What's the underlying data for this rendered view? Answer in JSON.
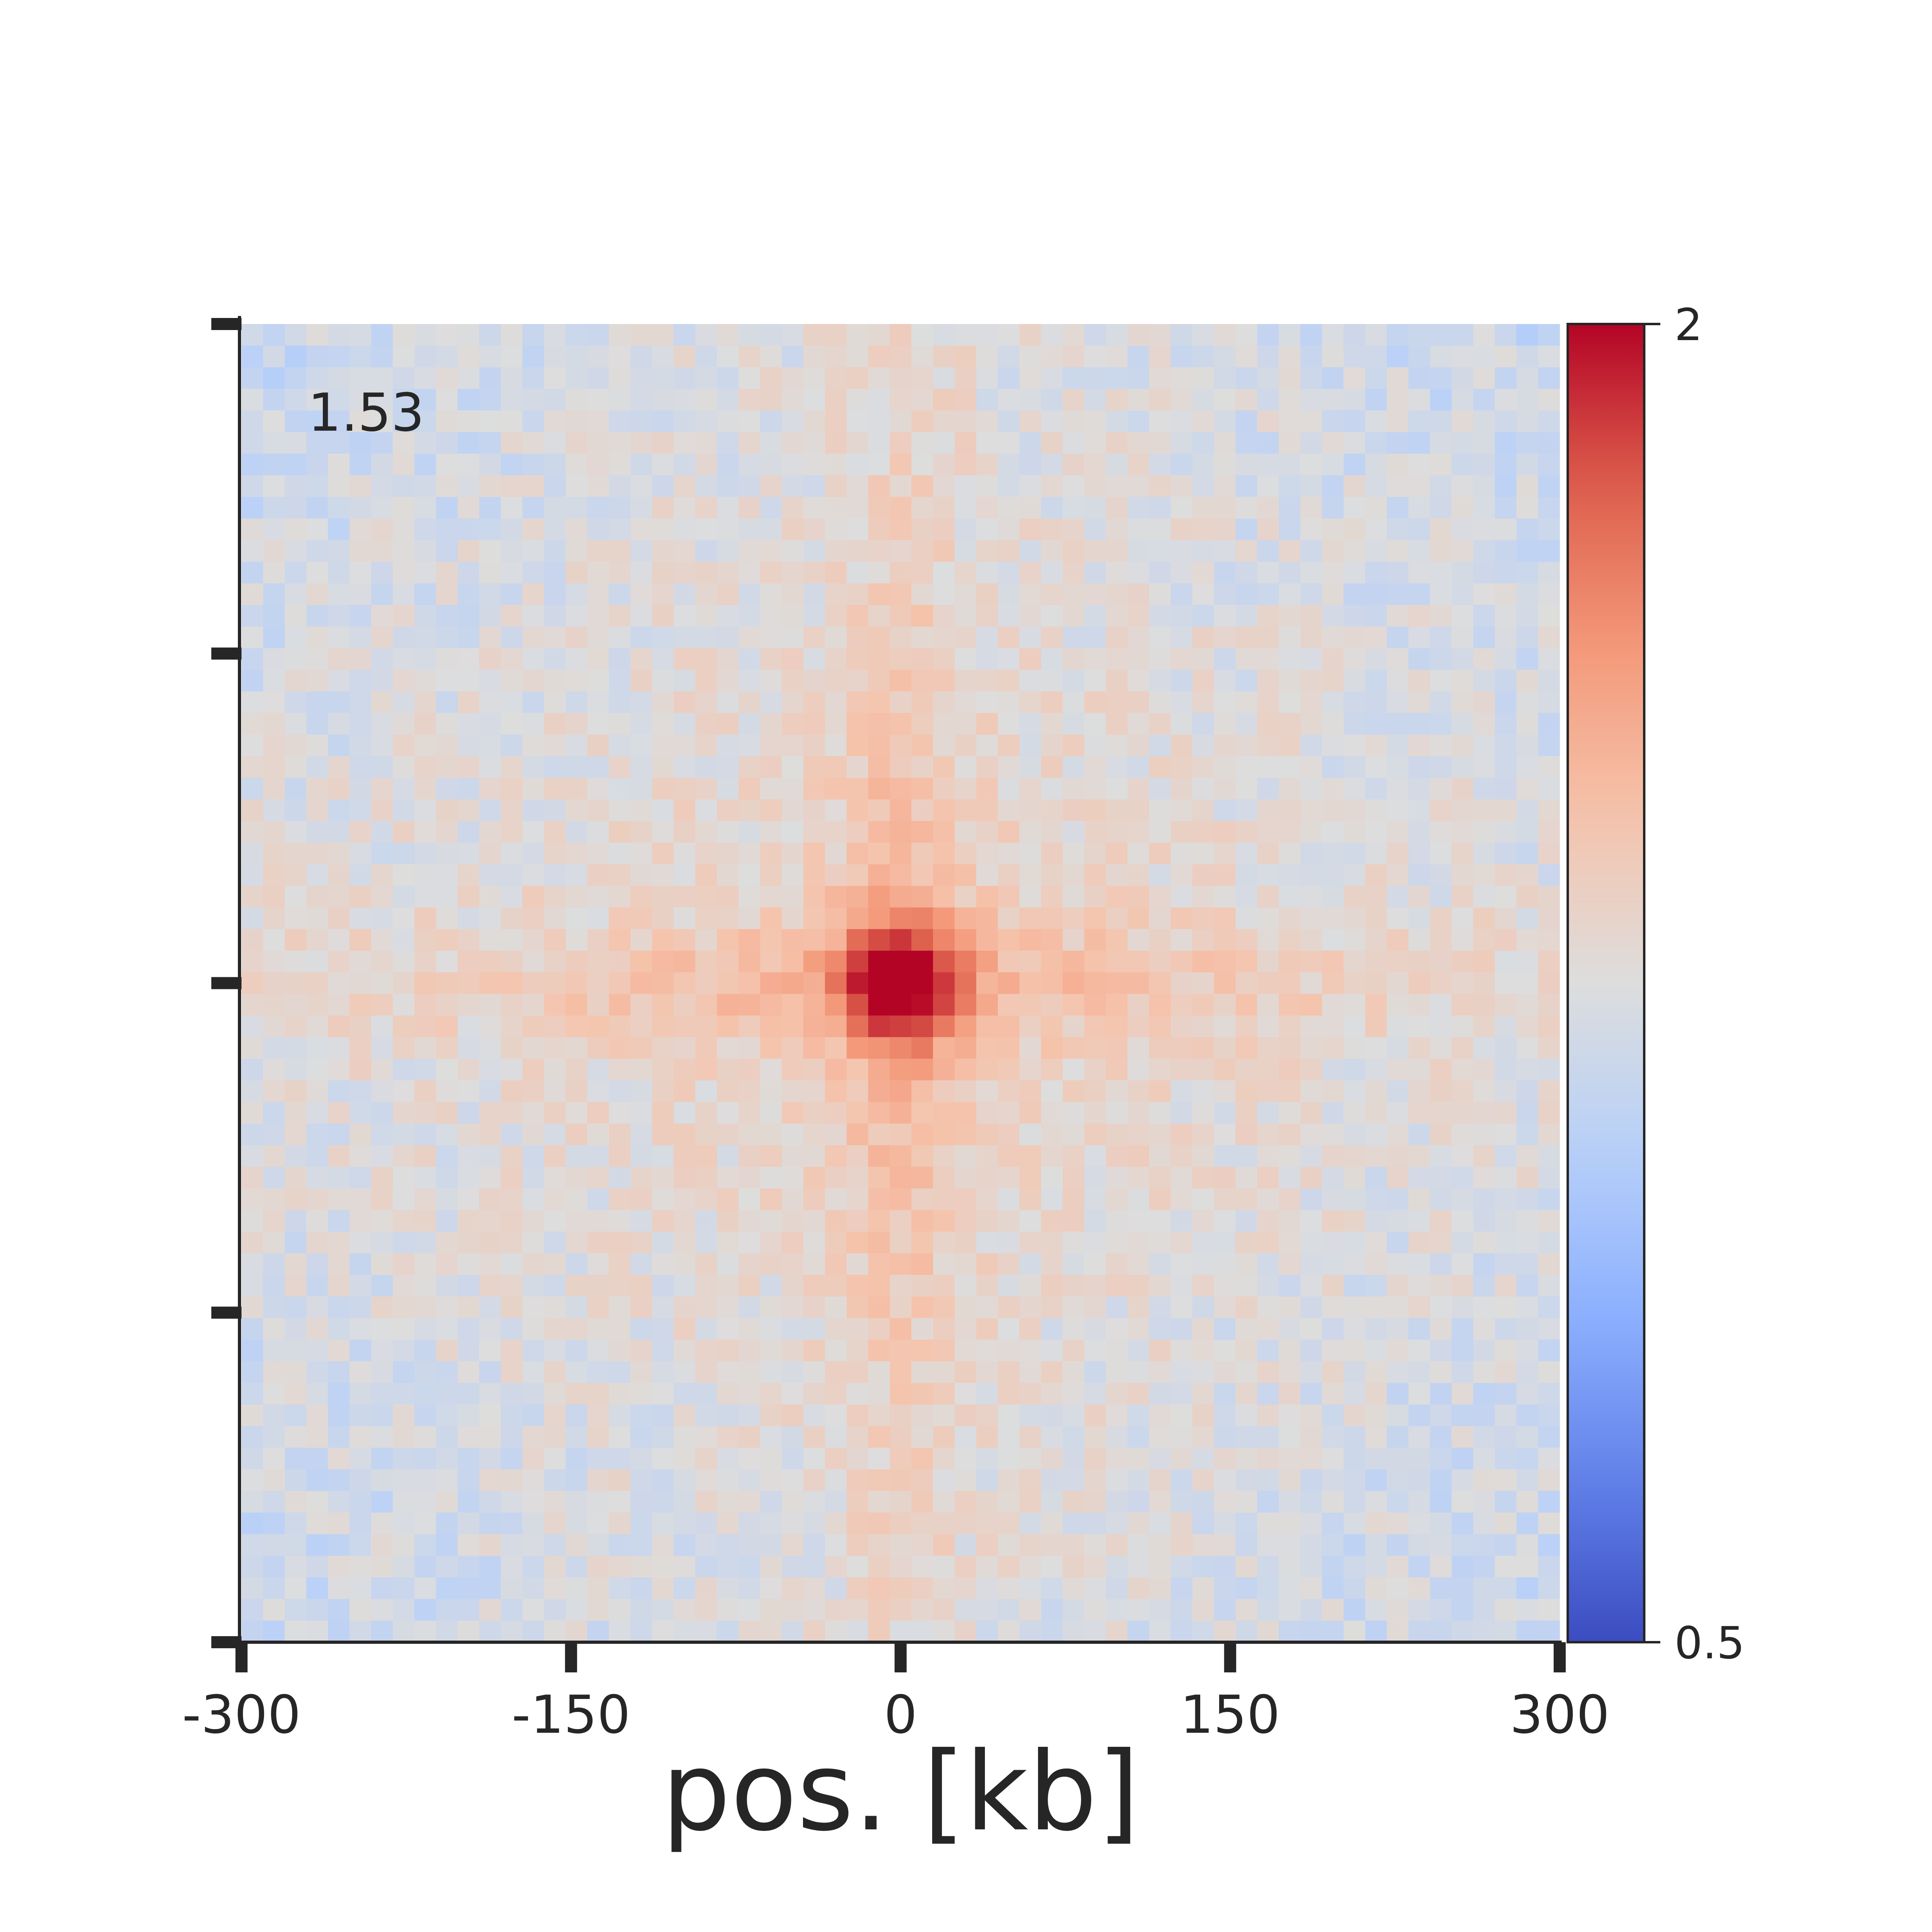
{
  "chart_data": {
    "type": "heatmap",
    "description_free": true,
    "xlabel": "pos. [kb]",
    "x_ticks": [
      "-300",
      "-150",
      "0",
      "150",
      "300"
    ],
    "x_range": [
      -300,
      300
    ],
    "y_range": [
      -300,
      300
    ],
    "bins": 61,
    "annotation": "1.53",
    "colorbar": {
      "colormap": "coolwarm",
      "range": [
        0.5,
        2
      ],
      "tick_labels": [
        "2",
        "0.5"
      ],
      "min_color": "#3b4cc0",
      "mid_color": "#dddddd",
      "max_color": "#b40426"
    },
    "pattern": {
      "center_value": 1.85,
      "background_value": 1.0,
      "cross_arm_value": 1.25,
      "corner_value": 0.93,
      "noise_amplitude": 0.09
    }
  }
}
